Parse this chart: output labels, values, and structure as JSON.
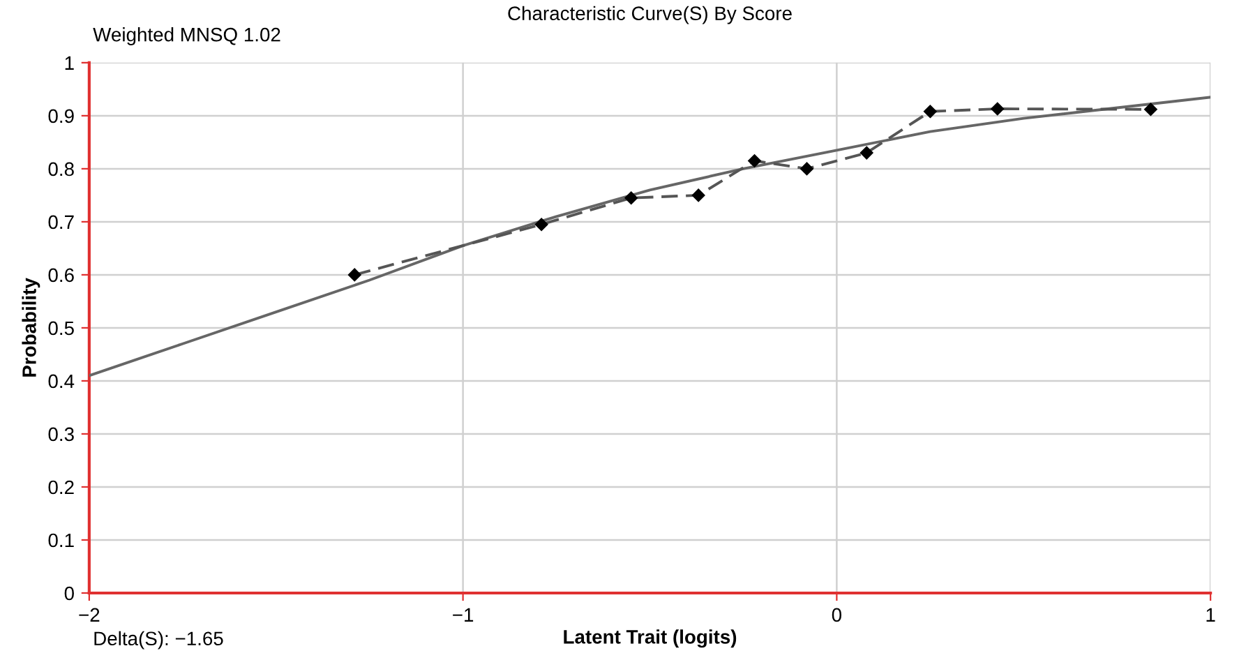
{
  "chart_data": {
    "type": "line",
    "title": "Characteristic Curve(S) By Score",
    "xlabel": "Latent Trait (logits)",
    "ylabel": "Probability",
    "annotations": [
      "Weighted MNSQ 1.02",
      "Delta(S): −1.65"
    ],
    "series": [
      {
        "color": "#666666",
        "line_style": "solid",
        "marker": "none",
        "x": [
          -2,
          -1.75,
          -1.5,
          -1.25,
          -1,
          -0.75,
          -0.5,
          -0.25,
          0,
          0.25,
          0.5,
          0.75,
          1
        ],
        "values": [
          0.41,
          0.47,
          0.53,
          0.59,
          0.655,
          0.71,
          0.76,
          0.8,
          0.835,
          0.87,
          0.895,
          0.915,
          0.935
        ]
      },
      {
        "color": "#555555",
        "line_style": "dashed",
        "marker": "diamond",
        "x": [
          -1.29,
          -0.79,
          -0.55,
          -0.37,
          -0.22,
          -0.08,
          0.08,
          0.25,
          0.43,
          0.84
        ],
        "values": [
          0.6,
          0.695,
          0.745,
          0.75,
          0.815,
          0.8,
          0.83,
          0.908,
          0.913,
          0.912
        ]
      }
    ],
    "xlim": [
      -2,
      1
    ],
    "ylim": [
      0,
      1
    ],
    "xticks": [
      {
        "value": -2,
        "label": "−2"
      },
      {
        "value": -1,
        "label": "−1"
      },
      0,
      1
    ],
    "yticks": [
      0,
      0.1,
      0.2,
      0.3,
      0.4,
      0.5,
      0.6,
      0.7,
      0.8,
      0.9,
      1
    ],
    "grid": true,
    "legend": false
  }
}
